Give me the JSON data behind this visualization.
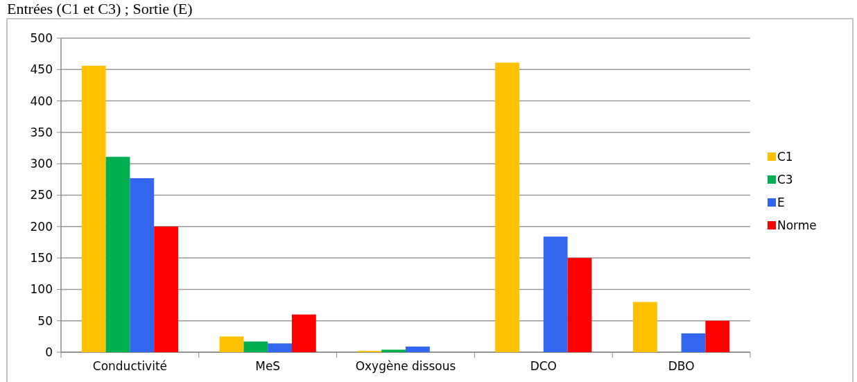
{
  "chart_data": {
    "type": "bar",
    "title": "Entrées (C1 et C3) ; Sortie (E)",
    "categories": [
      "Conductivité",
      "MeS",
      "Oxygène dissous",
      "DCO",
      "DBO"
    ],
    "series": [
      {
        "name": "C1",
        "color": "#ffc000",
        "values": [
          456,
          25,
          2,
          461,
          80
        ]
      },
      {
        "name": "C3",
        "color": "#00b050",
        "values": [
          311,
          17,
          4,
          null,
          null
        ]
      },
      {
        "name": "E",
        "color": "#3366ee",
        "values": [
          277,
          14,
          9,
          184,
          30
        ]
      },
      {
        "name": "Norme",
        "color": "#ff0000",
        "values": [
          200,
          60,
          null,
          150,
          50
        ]
      }
    ],
    "ylim": [
      0,
      500
    ],
    "yticks": [
      0,
      50,
      100,
      150,
      200,
      250,
      300,
      350,
      400,
      450,
      500
    ],
    "grid": "y",
    "legend": "right"
  }
}
